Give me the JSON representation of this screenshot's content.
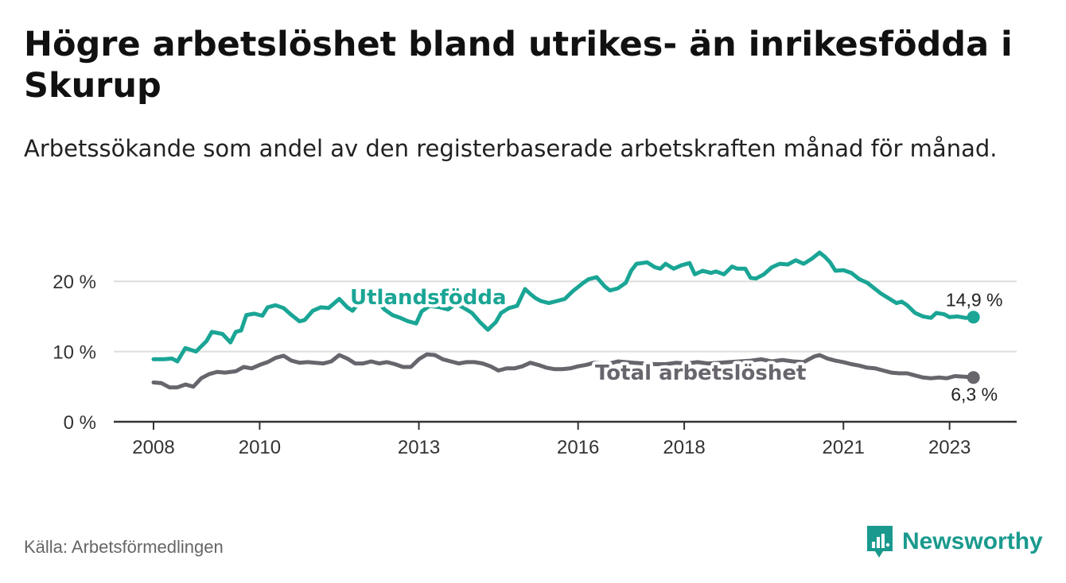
{
  "title": "Högre arbetslöshet bland utrikes- än inrikesfödda i Skurup",
  "subtitle": "Arbetssökande som andel av den registerbaserade arbetskraften månad för månad.",
  "source": "Källa: Arbetsförmedlingen",
  "brand": {
    "name": "Newsworthy",
    "color": "#1a9a8e",
    "icon": "newsworthy-logo-icon"
  },
  "colors": {
    "foreign": "#1aa595",
    "total": "#68656d",
    "grid": "#dddddd",
    "axis": "#333333"
  },
  "chart_data": {
    "type": "line",
    "title": "Högre arbetslöshet bland utrikes- än inrikesfödda i Skurup",
    "xlabel": "",
    "ylabel": "",
    "xlim": [
      2008,
      2023.5
    ],
    "ylim": [
      0,
      25
    ],
    "x_ticks": [
      2008,
      2010,
      2013,
      2016,
      2018,
      2021,
      2023
    ],
    "x_tick_labels": [
      "2008",
      "2010",
      "2013",
      "2016",
      "2018",
      "2021",
      "2023"
    ],
    "y_ticks": [
      0,
      10,
      20
    ],
    "y_tick_labels": [
      "0 %",
      "10 %",
      "20 %"
    ],
    "grid": true,
    "series": [
      {
        "name": "Utlandsfödda",
        "label": "Utlandsfödda",
        "end_label": "14,9 %",
        "points": [
          [
            2008.0,
            8.9
          ],
          [
            2008.2,
            8.9
          ],
          [
            2008.35,
            9.0
          ],
          [
            2008.45,
            8.6
          ],
          [
            2008.6,
            10.5
          ],
          [
            2008.8,
            10.0
          ],
          [
            2009.0,
            11.5
          ],
          [
            2009.1,
            12.8
          ],
          [
            2009.3,
            12.5
          ],
          [
            2009.45,
            11.3
          ],
          [
            2009.55,
            12.8
          ],
          [
            2009.65,
            13.0
          ],
          [
            2009.75,
            15.2
          ],
          [
            2009.9,
            15.4
          ],
          [
            2010.05,
            15.1
          ],
          [
            2010.15,
            16.3
          ],
          [
            2010.3,
            16.6
          ],
          [
            2010.45,
            16.2
          ],
          [
            2010.6,
            15.2
          ],
          [
            2010.75,
            14.3
          ],
          [
            2010.85,
            14.5
          ],
          [
            2011.0,
            15.8
          ],
          [
            2011.15,
            16.3
          ],
          [
            2011.3,
            16.2
          ],
          [
            2011.5,
            17.5
          ],
          [
            2011.65,
            16.3
          ],
          [
            2011.75,
            15.8
          ],
          [
            2011.85,
            16.8
          ],
          [
            2012.0,
            17.2
          ],
          [
            2012.2,
            17.4
          ],
          [
            2012.35,
            16.0
          ],
          [
            2012.5,
            15.2
          ],
          [
            2012.65,
            14.8
          ],
          [
            2012.8,
            14.3
          ],
          [
            2012.95,
            14.0
          ],
          [
            2013.05,
            15.7
          ],
          [
            2013.2,
            16.5
          ],
          [
            2013.4,
            16.3
          ],
          [
            2013.55,
            16.0
          ],
          [
            2013.7,
            16.8
          ],
          [
            2013.85,
            16.2
          ],
          [
            2014.0,
            15.5
          ],
          [
            2014.15,
            14.2
          ],
          [
            2014.3,
            13.1
          ],
          [
            2014.45,
            14.2
          ],
          [
            2014.55,
            15.5
          ],
          [
            2014.7,
            16.2
          ],
          [
            2014.85,
            16.5
          ],
          [
            2015.0,
            18.9
          ],
          [
            2015.1,
            18.2
          ],
          [
            2015.2,
            17.6
          ],
          [
            2015.3,
            17.2
          ],
          [
            2015.45,
            16.9
          ],
          [
            2015.6,
            17.2
          ],
          [
            2015.75,
            17.5
          ],
          [
            2015.9,
            18.6
          ],
          [
            2016.0,
            19.2
          ],
          [
            2016.1,
            19.8
          ],
          [
            2016.2,
            20.3
          ],
          [
            2016.35,
            20.6
          ],
          [
            2016.5,
            19.3
          ],
          [
            2016.6,
            18.7
          ],
          [
            2016.75,
            19.0
          ],
          [
            2016.9,
            19.8
          ],
          [
            2017.0,
            21.5
          ],
          [
            2017.1,
            22.5
          ],
          [
            2017.3,
            22.7
          ],
          [
            2017.45,
            22.0
          ],
          [
            2017.55,
            21.8
          ],
          [
            2017.65,
            22.5
          ],
          [
            2017.8,
            21.8
          ],
          [
            2017.95,
            22.3
          ],
          [
            2018.1,
            22.6
          ],
          [
            2018.2,
            21.0
          ],
          [
            2018.35,
            21.5
          ],
          [
            2018.5,
            21.2
          ],
          [
            2018.6,
            21.4
          ],
          [
            2018.75,
            21.0
          ],
          [
            2018.9,
            22.1
          ],
          [
            2019.0,
            21.8
          ],
          [
            2019.15,
            21.8
          ],
          [
            2019.25,
            20.5
          ],
          [
            2019.35,
            20.4
          ],
          [
            2019.5,
            21.0
          ],
          [
            2019.65,
            22.0
          ],
          [
            2019.8,
            22.5
          ],
          [
            2019.95,
            22.4
          ],
          [
            2020.1,
            23.0
          ],
          [
            2020.25,
            22.5
          ],
          [
            2020.4,
            23.2
          ],
          [
            2020.55,
            24.1
          ],
          [
            2020.65,
            23.5
          ],
          [
            2020.75,
            22.7
          ],
          [
            2020.85,
            21.5
          ],
          [
            2021.0,
            21.6
          ],
          [
            2021.15,
            21.2
          ],
          [
            2021.3,
            20.3
          ],
          [
            2021.45,
            19.8
          ],
          [
            2021.55,
            19.2
          ],
          [
            2021.7,
            18.3
          ],
          [
            2021.85,
            17.6
          ],
          [
            2022.0,
            16.9
          ],
          [
            2022.1,
            17.1
          ],
          [
            2022.2,
            16.6
          ],
          [
            2022.35,
            15.5
          ],
          [
            2022.5,
            15.0
          ],
          [
            2022.65,
            14.8
          ],
          [
            2022.75,
            15.5
          ],
          [
            2022.9,
            15.3
          ],
          [
            2023.0,
            14.9
          ],
          [
            2023.15,
            15.0
          ],
          [
            2023.3,
            14.8
          ],
          [
            2023.45,
            14.9
          ]
        ]
      },
      {
        "name": "Total arbetslöshet",
        "label": "Total arbetslöshet",
        "end_label": "6,3 %",
        "points": [
          [
            2008.0,
            5.6
          ],
          [
            2008.15,
            5.5
          ],
          [
            2008.3,
            4.9
          ],
          [
            2008.45,
            4.9
          ],
          [
            2008.6,
            5.3
          ],
          [
            2008.75,
            5.0
          ],
          [
            2008.9,
            6.2
          ],
          [
            2009.05,
            6.8
          ],
          [
            2009.2,
            7.1
          ],
          [
            2009.35,
            7.0
          ],
          [
            2009.55,
            7.2
          ],
          [
            2009.7,
            7.8
          ],
          [
            2009.85,
            7.6
          ],
          [
            2010.0,
            8.1
          ],
          [
            2010.15,
            8.5
          ],
          [
            2010.3,
            9.1
          ],
          [
            2010.45,
            9.4
          ],
          [
            2010.6,
            8.7
          ],
          [
            2010.75,
            8.4
          ],
          [
            2010.9,
            8.5
          ],
          [
            2011.05,
            8.4
          ],
          [
            2011.2,
            8.3
          ],
          [
            2011.35,
            8.6
          ],
          [
            2011.5,
            9.5
          ],
          [
            2011.65,
            9.0
          ],
          [
            2011.8,
            8.3
          ],
          [
            2011.95,
            8.3
          ],
          [
            2012.1,
            8.6
          ],
          [
            2012.25,
            8.3
          ],
          [
            2012.4,
            8.5
          ],
          [
            2012.55,
            8.2
          ],
          [
            2012.7,
            7.8
          ],
          [
            2012.85,
            7.8
          ],
          [
            2013.0,
            8.9
          ],
          [
            2013.15,
            9.6
          ],
          [
            2013.3,
            9.5
          ],
          [
            2013.45,
            8.9
          ],
          [
            2013.6,
            8.6
          ],
          [
            2013.75,
            8.3
          ],
          [
            2013.9,
            8.5
          ],
          [
            2014.05,
            8.5
          ],
          [
            2014.2,
            8.3
          ],
          [
            2014.35,
            7.9
          ],
          [
            2014.5,
            7.3
          ],
          [
            2014.65,
            7.6
          ],
          [
            2014.8,
            7.6
          ],
          [
            2014.95,
            7.9
          ],
          [
            2015.1,
            8.4
          ],
          [
            2015.25,
            8.1
          ],
          [
            2015.4,
            7.7
          ],
          [
            2015.55,
            7.5
          ],
          [
            2015.7,
            7.5
          ],
          [
            2015.85,
            7.6
          ],
          [
            2016.0,
            7.9
          ],
          [
            2016.15,
            8.1
          ],
          [
            2016.3,
            8.4
          ],
          [
            2016.45,
            8.3
          ],
          [
            2016.6,
            8.3
          ],
          [
            2016.75,
            8.6
          ],
          [
            2016.9,
            8.5
          ],
          [
            2017.05,
            8.4
          ],
          [
            2017.25,
            8.3
          ],
          [
            2017.45,
            8.2
          ],
          [
            2017.65,
            8.2
          ],
          [
            2017.85,
            8.4
          ],
          [
            2018.05,
            8.3
          ],
          [
            2018.25,
            8.5
          ],
          [
            2018.45,
            8.3
          ],
          [
            2018.65,
            8.4
          ],
          [
            2018.85,
            8.5
          ],
          [
            2019.05,
            8.6
          ],
          [
            2019.25,
            8.7
          ],
          [
            2019.45,
            8.9
          ],
          [
            2019.65,
            8.6
          ],
          [
            2019.85,
            8.8
          ],
          [
            2020.05,
            8.6
          ],
          [
            2020.25,
            8.5
          ],
          [
            2020.45,
            9.3
          ],
          [
            2020.55,
            9.5
          ],
          [
            2020.7,
            9.0
          ],
          [
            2020.85,
            8.7
          ],
          [
            2021.0,
            8.5
          ],
          [
            2021.15,
            8.2
          ],
          [
            2021.3,
            8.0
          ],
          [
            2021.45,
            7.7
          ],
          [
            2021.6,
            7.6
          ],
          [
            2021.75,
            7.3
          ],
          [
            2021.9,
            7.0
          ],
          [
            2022.05,
            6.9
          ],
          [
            2022.2,
            6.9
          ],
          [
            2022.35,
            6.6
          ],
          [
            2022.5,
            6.3
          ],
          [
            2022.65,
            6.2
          ],
          [
            2022.8,
            6.3
          ],
          [
            2022.95,
            6.2
          ],
          [
            2023.1,
            6.5
          ],
          [
            2023.3,
            6.4
          ],
          [
            2023.45,
            6.3
          ]
        ]
      }
    ]
  }
}
